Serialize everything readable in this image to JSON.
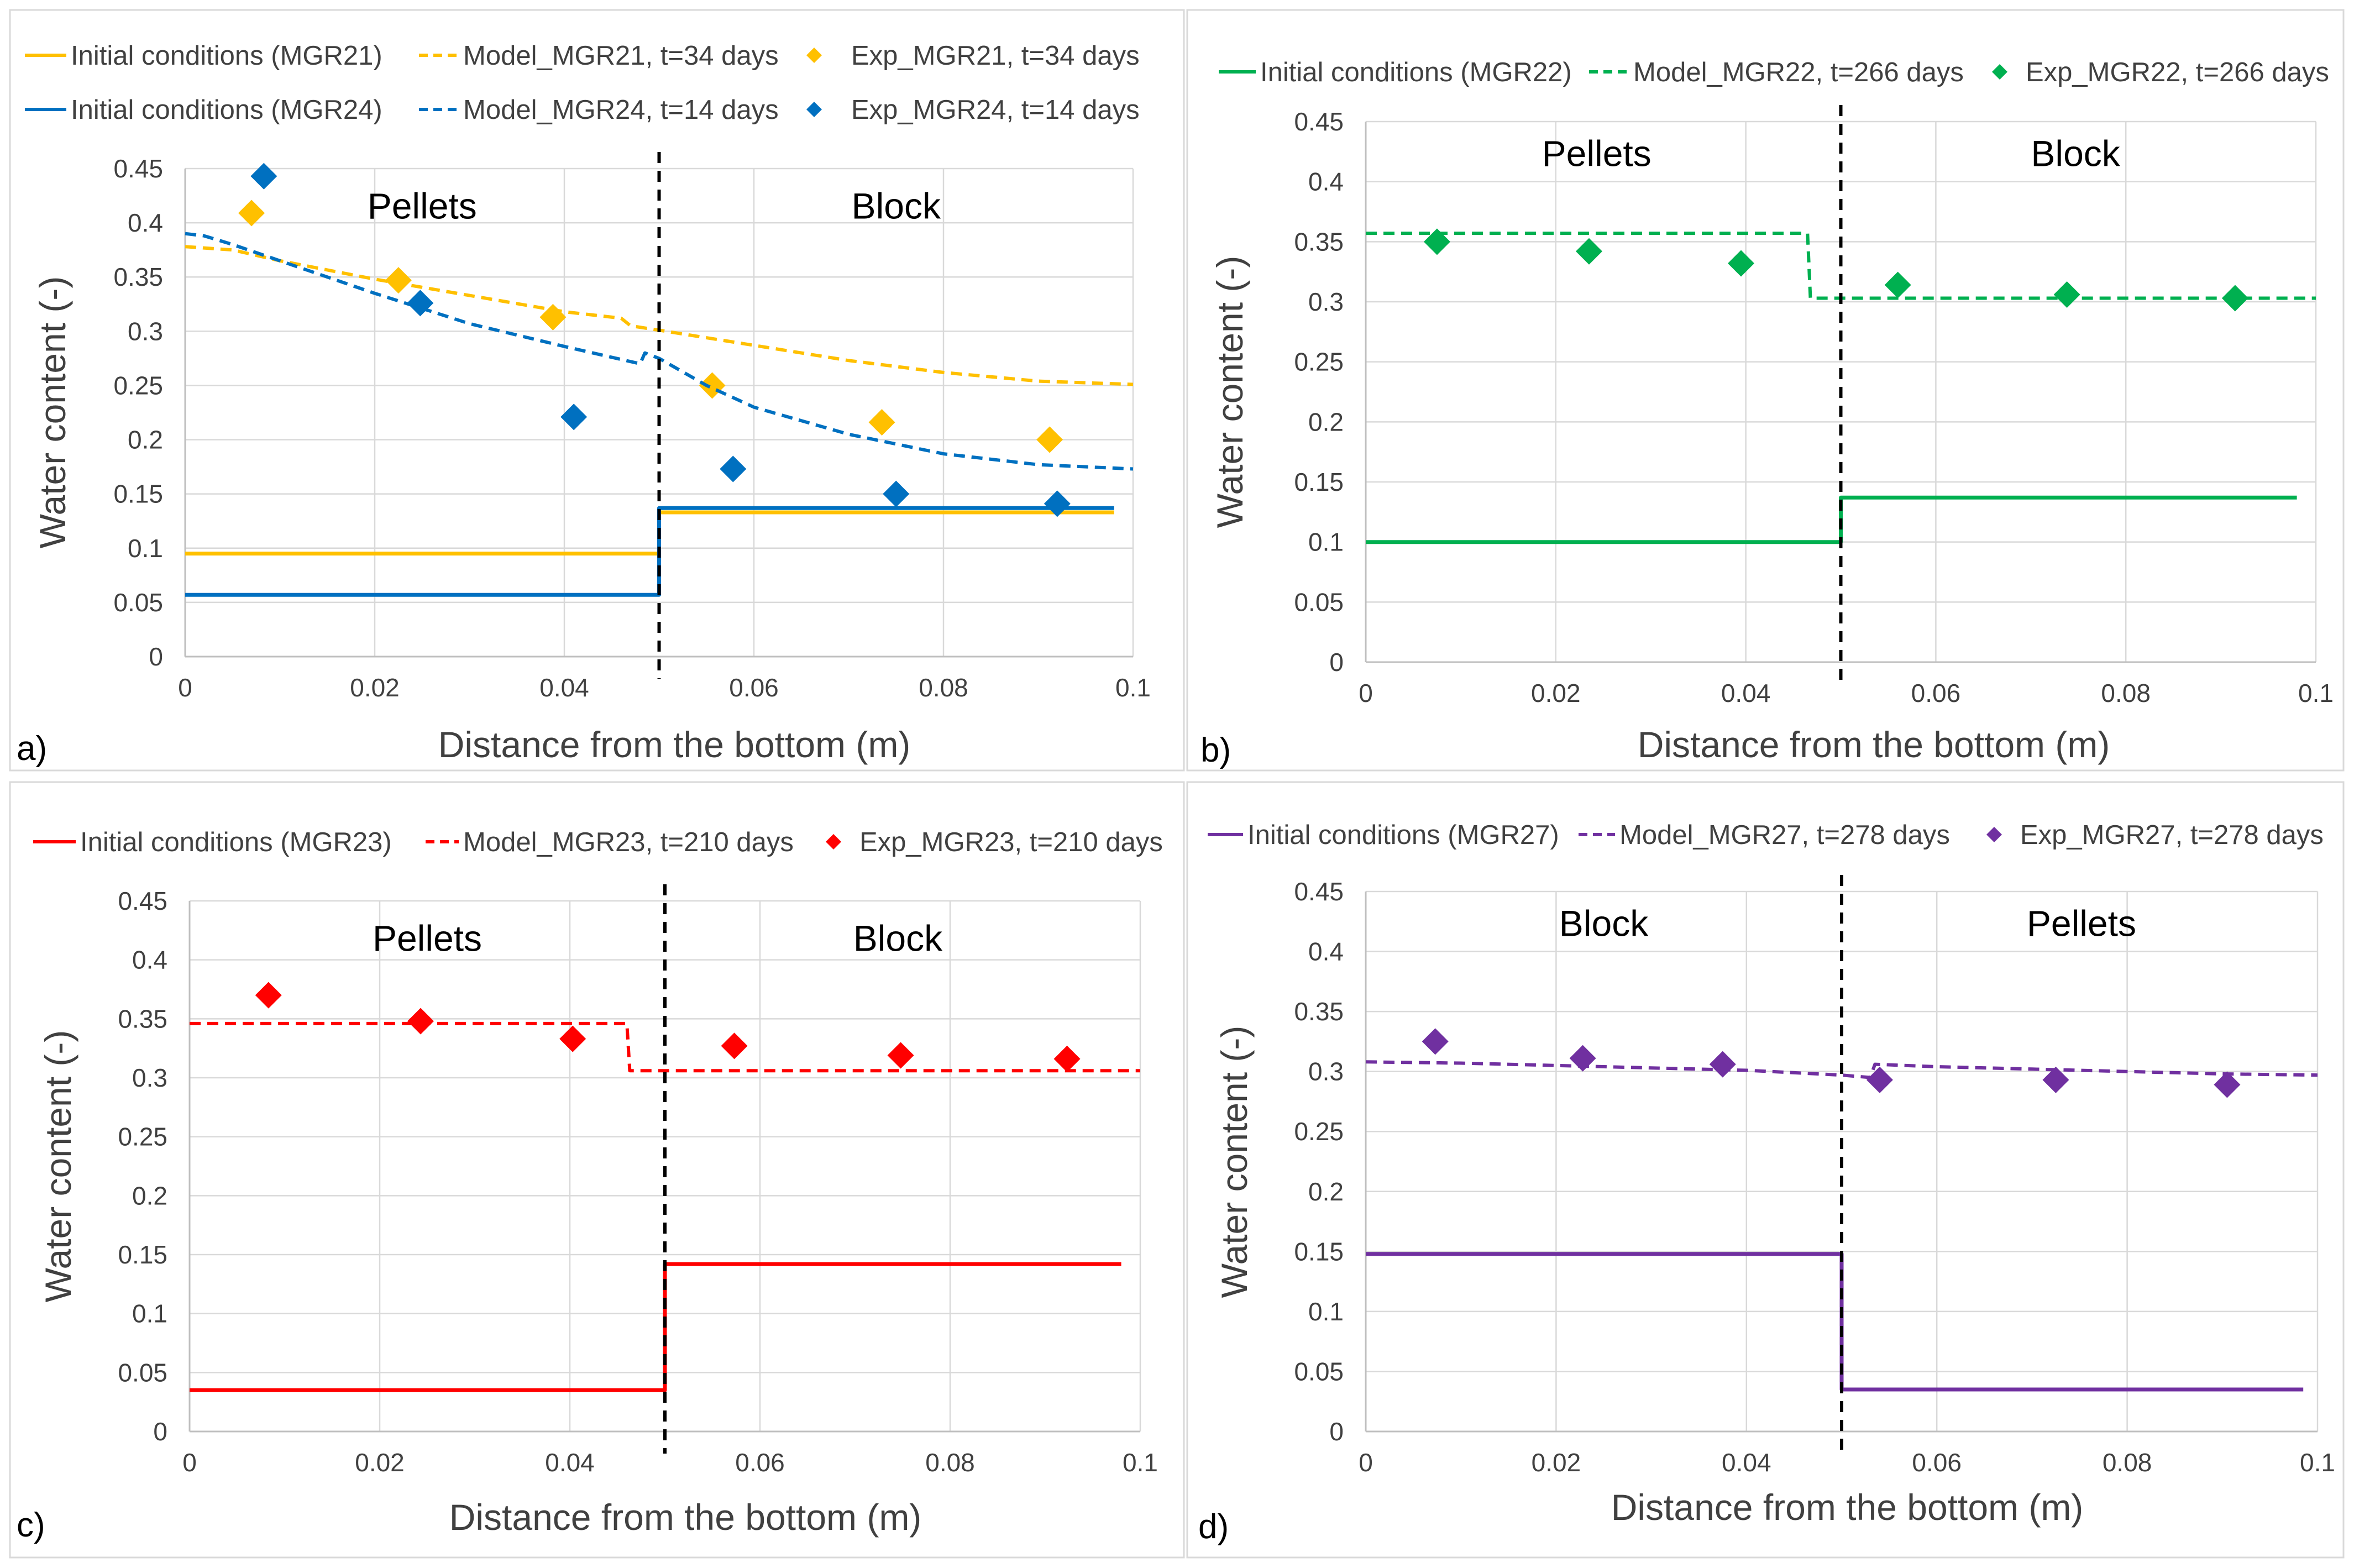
{
  "chart_data": [
    {
      "type": "line",
      "panel_label": "a)",
      "xlabel": "Distance from the bottom (m)",
      "ylabel": "Water content (-)",
      "xlim": [
        0,
        0.1
      ],
      "ylim": [
        0,
        0.45
      ],
      "xticks": [
        0,
        0.02,
        0.04,
        0.06,
        0.08,
        0.1
      ],
      "xtick_labels": [
        "0",
        "0.02",
        "0.04",
        "0.06",
        "0.08",
        "0.1"
      ],
      "yticks": [
        0,
        0.05,
        0.1,
        0.15,
        0.2,
        0.25,
        0.3,
        0.35,
        0.4,
        0.45
      ],
      "ytick_labels": [
        "0",
        "0.05",
        "0.1",
        "0.15",
        "0.2",
        "0.25",
        "0.3",
        "0.35",
        "0.4",
        "0.45"
      ],
      "divider_x": 0.05,
      "regions": [
        {
          "label": "Pellets",
          "x": 0.025,
          "y": 0.415
        },
        {
          "label": "Block",
          "x": 0.075,
          "y": 0.415
        }
      ],
      "series": [
        {
          "name": "Initial conditions (MGR21)",
          "kind": "solid",
          "color": "#ffc000",
          "x": [
            0,
            0.05,
            0.05,
            0.098
          ],
          "y": [
            0.095,
            0.095,
            0.133,
            0.133
          ]
        },
        {
          "name": "Model_MGR21, t=34 days",
          "kind": "dashed",
          "color": "#ffc000",
          "x": [
            0,
            0.005,
            0.01,
            0.02,
            0.03,
            0.04,
            0.046,
            0.047,
            0.05,
            0.06,
            0.07,
            0.08,
            0.09,
            0.1
          ],
          "y": [
            0.378,
            0.375,
            0.365,
            0.348,
            0.333,
            0.318,
            0.312,
            0.305,
            0.301,
            0.287,
            0.273,
            0.262,
            0.254,
            0.251
          ]
        },
        {
          "name": "Exp_MGR21, t=34 days",
          "kind": "marker",
          "color": "#ffc000",
          "x": [
            0.007,
            0.0225,
            0.0388,
            0.0556,
            0.0735,
            0.0912
          ],
          "y": [
            0.409,
            0.347,
            0.313,
            0.25,
            0.216,
            0.2
          ]
        },
        {
          "name": "Initial conditions (MGR24)",
          "kind": "solid",
          "color": "#0070c0",
          "x": [
            0,
            0.05,
            0.05,
            0.098
          ],
          "y": [
            0.057,
            0.057,
            0.137,
            0.137
          ]
        },
        {
          "name": "Model_MGR24, t=14 days",
          "kind": "dashed",
          "color": "#0070c0",
          "x": [
            0,
            0.002,
            0.005,
            0.01,
            0.02,
            0.03,
            0.04,
            0.048,
            0.0485,
            0.05,
            0.055,
            0.06,
            0.07,
            0.08,
            0.09,
            0.1
          ],
          "y": [
            0.39,
            0.388,
            0.38,
            0.365,
            0.335,
            0.307,
            0.286,
            0.27,
            0.28,
            0.275,
            0.25,
            0.23,
            0.205,
            0.187,
            0.177,
            0.173
          ]
        },
        {
          "name": "Exp_MGR24, t=14 days",
          "kind": "marker",
          "color": "#0070c0",
          "x": [
            0.0083,
            0.0248,
            0.041,
            0.0578,
            0.075,
            0.092
          ],
          "y": [
            0.443,
            0.326,
            0.221,
            0.173,
            0.15,
            0.141
          ]
        }
      ],
      "legend": {
        "placement": "top",
        "columns": 3
      }
    },
    {
      "type": "line",
      "panel_label": "b)",
      "xlabel": "Distance from the bottom (m)",
      "ylabel": "Water content (-)",
      "xlim": [
        0,
        0.1
      ],
      "ylim": [
        0,
        0.45
      ],
      "xticks": [
        0,
        0.02,
        0.04,
        0.06,
        0.08,
        0.1
      ],
      "xtick_labels": [
        "0",
        "0.02",
        "0.04",
        "0.06",
        "0.08",
        "0.1"
      ],
      "yticks": [
        0,
        0.05,
        0.1,
        0.15,
        0.2,
        0.25,
        0.3,
        0.35,
        0.4,
        0.45
      ],
      "ytick_labels": [
        "0",
        "0.05",
        "0.1",
        "0.15",
        "0.2",
        "0.25",
        "0.3",
        "0.35",
        "0.4",
        "0.45"
      ],
      "divider_x": 0.05,
      "regions": [
        {
          "label": "Pellets",
          "x": 0.0243,
          "y": 0.423
        },
        {
          "label": "Block",
          "x": 0.0747,
          "y": 0.423
        }
      ],
      "series": [
        {
          "name": "Initial conditions (MGR22)",
          "kind": "solid",
          "color": "#00b050",
          "x": [
            0,
            0.05,
            0.05,
            0.098
          ],
          "y": [
            0.1,
            0.1,
            0.137,
            0.137
          ]
        },
        {
          "name": "Model_MGR22, t=266 days",
          "kind": "dashed",
          "color": "#00b050",
          "x": [
            0,
            0.0465,
            0.0468,
            0.1
          ],
          "y": [
            0.357,
            0.357,
            0.303,
            0.303
          ]
        },
        {
          "name": "Exp_MGR22, t=266 days",
          "kind": "marker",
          "color": "#00b050",
          "x": [
            0.0075,
            0.0235,
            0.0395,
            0.056,
            0.0738,
            0.0915
          ],
          "y": [
            0.35,
            0.342,
            0.332,
            0.314,
            0.306,
            0.303
          ]
        }
      ],
      "legend": {
        "placement": "top",
        "columns": 3
      }
    },
    {
      "type": "line",
      "panel_label": "c)",
      "xlabel": "Distance from the bottom (m)",
      "ylabel": "Water content (-)",
      "xlim": [
        0,
        0.1
      ],
      "ylim": [
        0,
        0.45
      ],
      "xticks": [
        0,
        0.02,
        0.04,
        0.06,
        0.08,
        0.1
      ],
      "xtick_labels": [
        "0",
        "0.02",
        "0.04",
        "0.06",
        "0.08",
        "0.1"
      ],
      "yticks": [
        0,
        0.05,
        0.1,
        0.15,
        0.2,
        0.25,
        0.3,
        0.35,
        0.4,
        0.45
      ],
      "ytick_labels": [
        "0",
        "0.05",
        "0.1",
        "0.15",
        "0.2",
        "0.25",
        "0.3",
        "0.35",
        "0.4",
        "0.45"
      ],
      "divider_x": 0.05,
      "regions": [
        {
          "label": "Pellets",
          "x": 0.025,
          "y": 0.418
        },
        {
          "label": "Block",
          "x": 0.0745,
          "y": 0.418
        }
      ],
      "series": [
        {
          "name": "Initial conditions (MGR23)",
          "kind": "solid",
          "color": "#ff0000",
          "x": [
            0,
            0.05,
            0.05,
            0.098
          ],
          "y": [
            0.035,
            0.035,
            0.142,
            0.142
          ]
        },
        {
          "name": "Model_MGR23, t=210 days",
          "kind": "dashed",
          "color": "#ff0000",
          "x": [
            0,
            0.046,
            0.0463,
            0.1
          ],
          "y": [
            0.346,
            0.346,
            0.306,
            0.306
          ]
        },
        {
          "name": "Exp_MGR23, t=210 days",
          "kind": "marker",
          "color": "#ff0000",
          "x": [
            0.0083,
            0.0243,
            0.0403,
            0.0573,
            0.0748,
            0.0923
          ],
          "y": [
            0.37,
            0.348,
            0.333,
            0.327,
            0.319,
            0.316
          ]
        }
      ],
      "legend": {
        "placement": "top",
        "columns": 3
      }
    },
    {
      "type": "line",
      "panel_label": "d)",
      "xlabel": "Distance from the bottom (m)",
      "ylabel": "Water content (-)",
      "xlim": [
        0,
        0.1
      ],
      "ylim": [
        0,
        0.45
      ],
      "xticks": [
        0,
        0.02,
        0.04,
        0.06,
        0.08,
        0.1
      ],
      "xtick_labels": [
        "0",
        "0.02",
        "0.04",
        "0.06",
        "0.08",
        "0.1"
      ],
      "yticks": [
        0,
        0.05,
        0.1,
        0.15,
        0.2,
        0.25,
        0.3,
        0.35,
        0.4,
        0.45
      ],
      "ytick_labels": [
        "0",
        "0.05",
        "0.1",
        "0.15",
        "0.2",
        "0.25",
        "0.3",
        "0.35",
        "0.4",
        "0.45"
      ],
      "divider_x": 0.05,
      "regions": [
        {
          "label": "Block",
          "x": 0.025,
          "y": 0.423
        },
        {
          "label": "Pellets",
          "x": 0.0752,
          "y": 0.423
        }
      ],
      "series": [
        {
          "name": "Initial conditions (MGR27)",
          "kind": "solid",
          "color": "#7030a0",
          "x": [
            0,
            0.05,
            0.05,
            0.0985
          ],
          "y": [
            0.148,
            0.148,
            0.035,
            0.035
          ]
        },
        {
          "name": "Model_MGR27, t=278 days",
          "kind": "dashed",
          "color": "#7030a0",
          "x": [
            0,
            0.01,
            0.02,
            0.03,
            0.04,
            0.05,
            0.053,
            0.0535,
            0.06,
            0.07,
            0.08,
            0.09,
            0.1
          ],
          "y": [
            0.308,
            0.307,
            0.305,
            0.303,
            0.301,
            0.297,
            0.295,
            0.306,
            0.304,
            0.302,
            0.3,
            0.298,
            0.297
          ]
        },
        {
          "name": "Exp_MGR27, t=278 days",
          "kind": "marker",
          "color": "#7030a0",
          "x": [
            0.0073,
            0.0228,
            0.0375,
            0.054,
            0.0725,
            0.0905
          ],
          "y": [
            0.325,
            0.311,
            0.306,
            0.293,
            0.293,
            0.289
          ]
        }
      ],
      "legend": {
        "placement": "top",
        "columns": 3
      }
    }
  ]
}
